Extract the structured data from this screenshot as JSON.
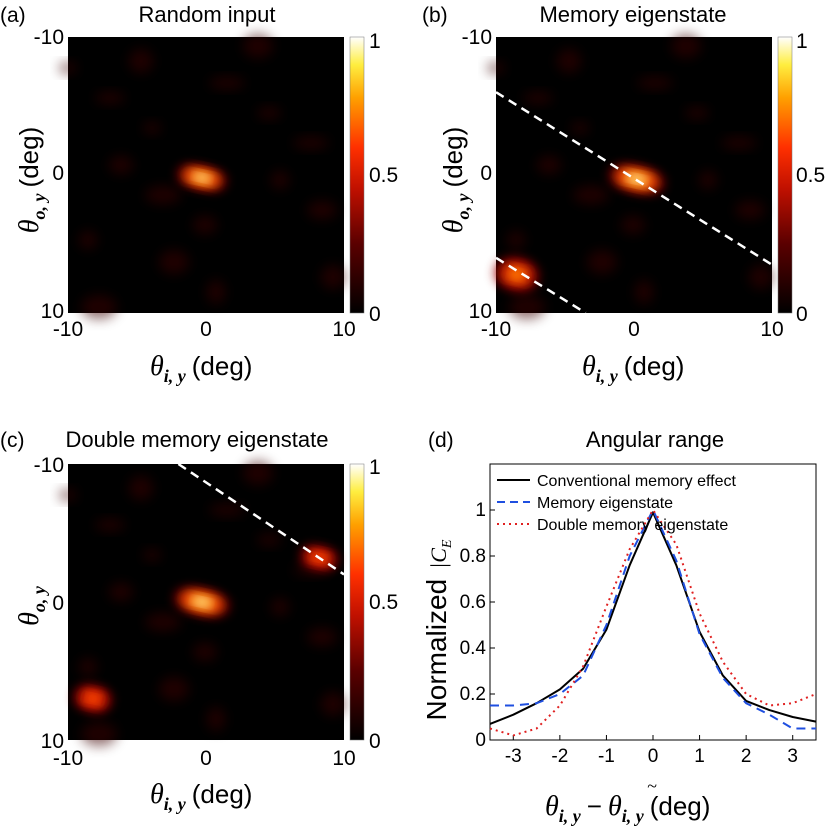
{
  "panels": [
    {
      "letter": "(a)",
      "title": "Random input",
      "type": "heatmap",
      "x_label": "(deg)",
      "y_label": "(deg)",
      "x_symbol": "θ",
      "x_sub": "i, y",
      "y_symbol": "θ",
      "y_sub": "o, y",
      "x_ticks": [
        "-10",
        "0",
        "10"
      ],
      "y_ticks": [
        "-10",
        "0",
        "10"
      ],
      "colorbar_ticks": [
        "1",
        "0.5",
        "0"
      ],
      "blobs": [
        {
          "x": -0.3,
          "y": 0.2,
          "sx": 1.6,
          "sy": 0.7,
          "amp": 1.0
        }
      ],
      "dashed_lines": []
    },
    {
      "letter": "(b)",
      "title": "Memory eigenstate",
      "type": "heatmap",
      "x_label": "(deg)",
      "y_label": "(deg)",
      "x_symbol": "θ",
      "x_sub": "i, y",
      "y_symbol": "θ",
      "y_sub": "o, y",
      "x_ticks": [
        "-10",
        "0",
        "10"
      ],
      "y_ticks": [
        "-10",
        "0",
        "10"
      ],
      "colorbar_ticks": [
        "1",
        "0.5",
        "0"
      ],
      "blobs": [
        {
          "x": 0.2,
          "y": 0.3,
          "sx": 1.8,
          "sy": 0.8,
          "amp": 1.0
        },
        {
          "x": -8.5,
          "y": 7.2,
          "sx": 1.4,
          "sy": 1.0,
          "amp": 0.75
        }
      ],
      "dashed_lines": [
        [
          [
            -10,
            -6
          ],
          [
            10,
            6.5
          ]
        ],
        [
          [
            -10,
            6
          ],
          [
            -3.5,
            10
          ]
        ]
      ]
    },
    {
      "letter": "(c)",
      "title": "Double memory eigenstate",
      "type": "heatmap",
      "x_label": "(deg)",
      "y_label": "",
      "x_symbol": "θ",
      "x_sub": "i, y",
      "y_symbol": "θ",
      "y_sub": "o, y",
      "x_ticks": [
        "-10",
        "0",
        "10"
      ],
      "y_ticks": [
        "-10",
        "0",
        "10"
      ],
      "colorbar_ticks": [
        "1",
        "0.5",
        "0"
      ],
      "blobs": [
        {
          "x": -0.3,
          "y": 0.0,
          "sx": 1.8,
          "sy": 0.8,
          "amp": 1.0
        },
        {
          "x": 8.2,
          "y": -3.2,
          "sx": 1.2,
          "sy": 0.7,
          "amp": 0.7
        },
        {
          "x": -8.2,
          "y": 7.0,
          "sx": 1.2,
          "sy": 0.8,
          "amp": 0.7
        }
      ],
      "dashed_lines": [
        [
          [
            -2,
            -10
          ],
          [
            10,
            -2
          ]
        ]
      ]
    }
  ],
  "chart_data": {
    "type": "line",
    "letter": "(d)",
    "title": "Angular range",
    "xlabel_symbol": "θ",
    "xlabel_sub": "i, y",
    "xlabel_tail": "(deg)",
    "ylabel": "Normalized",
    "ylabel_sym": "|C",
    "ylabel_sub": "E",
    "xlim": [
      -3.5,
      3.5
    ],
    "ylim": [
      0,
      1.2
    ],
    "x_ticks": [
      -3,
      -2,
      -1,
      0,
      1,
      2,
      3
    ],
    "x_tick_labels": [
      "-3",
      "-2",
      "-1",
      "0",
      "1",
      "2",
      "3"
    ],
    "y_ticks": [
      0,
      0.2,
      0.4,
      0.6,
      0.8,
      1
    ],
    "y_tick_labels": [
      "0",
      "0.2",
      "0.4",
      "0.6",
      "0.8",
      "1"
    ],
    "series": [
      {
        "name": "Conventional memory effect",
        "color": "#000000",
        "dash": "solid",
        "x": [
          -3.5,
          -3.0,
          -2.5,
          -2.0,
          -1.5,
          -1.0,
          -0.5,
          0.0,
          0.5,
          1.0,
          1.5,
          2.0,
          2.5,
          3.0,
          3.5
        ],
        "y": [
          0.07,
          0.11,
          0.16,
          0.22,
          0.31,
          0.48,
          0.76,
          0.99,
          0.76,
          0.47,
          0.28,
          0.17,
          0.13,
          0.1,
          0.08
        ]
      },
      {
        "name": "Memory eigenstate",
        "color": "#1f4fe0",
        "dash": "dashed",
        "x": [
          -3.5,
          -3.0,
          -2.5,
          -2.0,
          -1.5,
          -1.0,
          -0.5,
          0.0,
          0.5,
          1.0,
          1.5,
          2.0,
          2.5,
          3.0,
          3.5
        ],
        "y": [
          0.15,
          0.15,
          0.16,
          0.2,
          0.28,
          0.5,
          0.8,
          1.0,
          0.78,
          0.46,
          0.27,
          0.16,
          0.11,
          0.05,
          0.05
        ]
      },
      {
        "name": "Double memory eigenstate",
        "color": "#e02020",
        "dash": "dotted",
        "x": [
          -3.5,
          -3.0,
          -2.5,
          -2.0,
          -1.5,
          -1.0,
          -0.5,
          0.0,
          0.5,
          1.0,
          1.5,
          2.0,
          2.5,
          3.0,
          3.5
        ],
        "y": [
          0.05,
          0.02,
          0.05,
          0.15,
          0.32,
          0.58,
          0.83,
          1.0,
          0.85,
          0.55,
          0.34,
          0.2,
          0.15,
          0.16,
          0.2
        ]
      }
    ]
  }
}
